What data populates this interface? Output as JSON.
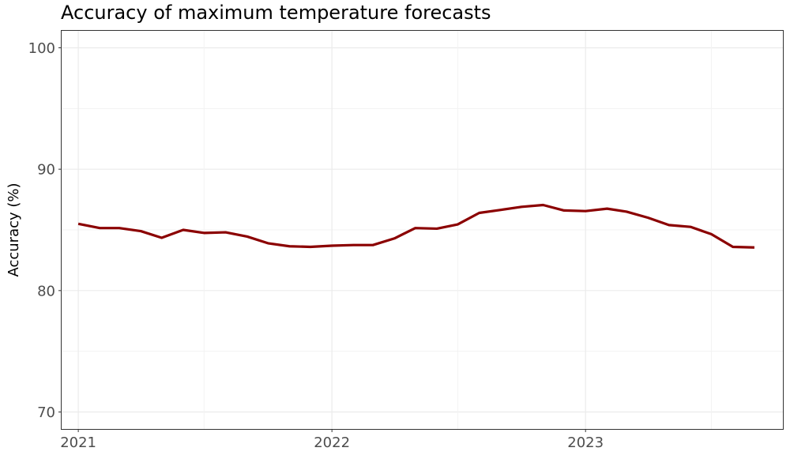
{
  "chart_data": {
    "type": "line",
    "title": "Accuracy of maximum temperature forecasts",
    "xlabel": "",
    "ylabel": "Accuracy (%)",
    "x_tick_labels": [
      "2021",
      "2022",
      "2023"
    ],
    "y_tick_labels": [
      "70",
      "80",
      "90",
      "100"
    ],
    "xlim": [
      "2020-12-08",
      "2023-10-12"
    ],
    "ylim": [
      68.6,
      101.4
    ],
    "grid": true,
    "legend": "none",
    "line_color": "#8b0000",
    "series": [
      {
        "x": [
          "2021-01-01",
          "2021-02-01",
          "2021-03-01",
          "2021-04-01",
          "2021-05-01",
          "2021-06-01",
          "2021-07-01",
          "2021-08-01",
          "2021-09-01",
          "2021-10-01",
          "2021-11-01",
          "2021-12-01",
          "2022-01-01",
          "2022-02-01",
          "2022-03-01",
          "2022-04-01",
          "2022-05-01",
          "2022-06-01",
          "2022-07-01",
          "2022-08-01",
          "2022-09-01",
          "2022-10-01",
          "2022-11-01",
          "2022-12-01",
          "2023-01-01",
          "2023-02-01",
          "2023-03-01",
          "2023-04-01",
          "2023-05-01",
          "2023-06-01",
          "2023-07-01",
          "2023-08-01",
          "2023-09-01"
        ],
        "y": [
          85.5,
          85.15,
          85.15,
          84.9,
          84.35,
          85.0,
          84.75,
          84.8,
          84.45,
          83.9,
          83.65,
          83.6,
          83.7,
          83.75,
          83.75,
          84.3,
          85.15,
          85.1,
          85.45,
          86.4,
          86.65,
          86.9,
          87.05,
          86.6,
          86.55,
          86.75,
          86.5,
          86.0,
          85.4,
          85.25,
          84.65,
          83.6,
          83.55
        ]
      }
    ]
  }
}
